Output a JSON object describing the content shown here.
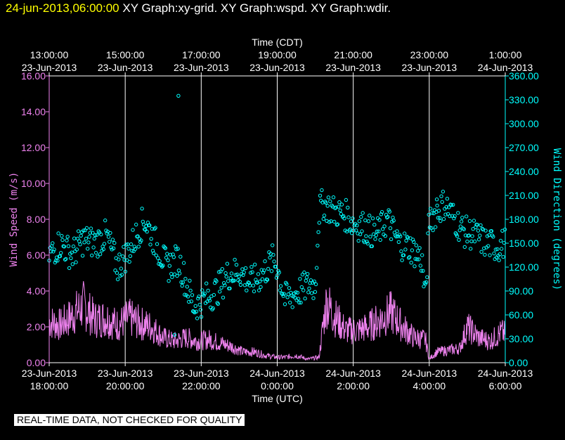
{
  "header": {
    "timestamp": "24-jun-2013,06:00:00",
    "layers": "XY Graph:xy-grid.  XY Graph:wspd.  XY Graph:wdir."
  },
  "footer": {
    "qc_note": "REAL-TIME DATA, NOT CHECKED FOR QUALITY"
  },
  "colors": {
    "wspd": "#ee82ee",
    "wdir": "#00ffff",
    "grid": "#ffffff",
    "background": "#000000"
  },
  "chart_data": {
    "type": "line",
    "top_axis_title": "Time (CDT)",
    "bottom_axis_title": "Time (UTC)",
    "left_axis_title": "Wind Speed (m/s)",
    "right_axis_title": "Wind Direction (degrees)",
    "x_range_utc_hours": [
      18.0,
      30.0
    ],
    "top_ticks": [
      {
        "t": 18,
        "time": "13:00:00",
        "date": "23-Jun-2013"
      },
      {
        "t": 20,
        "time": "15:00:00",
        "date": "23-Jun-2013"
      },
      {
        "t": 22,
        "time": "17:00:00",
        "date": "23-Jun-2013"
      },
      {
        "t": 24,
        "time": "19:00:00",
        "date": "23-Jun-2013"
      },
      {
        "t": 26,
        "time": "21:00:00",
        "date": "23-Jun-2013"
      },
      {
        "t": 28,
        "time": "23:00:00",
        "date": "23-Jun-2013"
      },
      {
        "t": 30,
        "time": "1:00:00",
        "date": "24-Jun-2013"
      }
    ],
    "bottom_ticks": [
      {
        "t": 18,
        "date": "23-Jun-2013",
        "time": "18:00:00"
      },
      {
        "t": 20,
        "date": "23-Jun-2013",
        "time": "20:00:00"
      },
      {
        "t": 22,
        "date": "23-Jun-2013",
        "time": "22:00:00"
      },
      {
        "t": 24,
        "date": "24-Jun-2013",
        "time": "0:00:00"
      },
      {
        "t": 26,
        "date": "24-Jun-2013",
        "time": "2:00:00"
      },
      {
        "t": 28,
        "date": "24-Jun-2013",
        "time": "4:00:00"
      },
      {
        "t": 30,
        "date": "24-Jun-2013",
        "time": "6:00:00"
      }
    ],
    "left_axis": {
      "range": [
        0,
        16
      ],
      "tick_labels": [
        "0.00",
        "2.00",
        "4.00",
        "6.00",
        "8.00",
        "10.00",
        "12.00",
        "14.00",
        "16.00"
      ]
    },
    "right_axis": {
      "range": [
        0,
        360
      ],
      "tick_labels": [
        "0.00",
        "30.00",
        "60.00",
        "90.00",
        "120.00",
        "150.00",
        "180.00",
        "210.00",
        "240.00",
        "270.00",
        "300.00",
        "330.00",
        "360.00"
      ]
    },
    "series": [
      {
        "name": "wspd",
        "axis": "left",
        "style": "line",
        "t": [
          18.0,
          18.3,
          18.6,
          18.9,
          19.2,
          19.5,
          19.8,
          20.1,
          20.4,
          20.7,
          21.0,
          21.3,
          21.6,
          21.9,
          22.2,
          22.5,
          22.8,
          23.1,
          23.4,
          23.7,
          24.0,
          24.2,
          24.5,
          24.8,
          25.1,
          25.2,
          25.3,
          25.5,
          25.8,
          26.1,
          26.4,
          26.7,
          27.0,
          27.3,
          27.6,
          27.9,
          28.0,
          28.2,
          28.5,
          28.8,
          29.0,
          29.3,
          29.6,
          29.9,
          30.0
        ],
        "values": [
          2.3,
          2.1,
          2.6,
          3.2,
          2.4,
          2.5,
          2.1,
          2.5,
          2.2,
          2.0,
          1.4,
          1.2,
          1.4,
          1.2,
          1.3,
          1.1,
          0.9,
          0.6,
          0.6,
          0.4,
          0.3,
          0.3,
          0.4,
          0.2,
          0.3,
          2.0,
          3.4,
          2.6,
          1.8,
          1.8,
          2.0,
          2.4,
          2.8,
          2.0,
          1.4,
          1.3,
          0.2,
          0.6,
          0.7,
          0.8,
          2.0,
          1.4,
          1.2,
          1.7,
          1.6
        ]
      },
      {
        "name": "wdir",
        "axis": "right",
        "style": "markers",
        "t": [
          18.0,
          18.3,
          18.6,
          18.9,
          19.2,
          19.5,
          19.8,
          20.1,
          20.3,
          20.5,
          20.8,
          21.1,
          21.4,
          21.6,
          21.8,
          22.1,
          22.4,
          22.7,
          23.0,
          23.3,
          23.6,
          23.9,
          24.0,
          24.2,
          24.4,
          24.6,
          24.9,
          25.0,
          25.1,
          25.2,
          25.5,
          25.8,
          26.0,
          26.3,
          26.6,
          26.9,
          27.2,
          27.5,
          27.8,
          27.9,
          28.0,
          28.2,
          28.4,
          28.6,
          28.9,
          29.2,
          29.5,
          29.8,
          30.0
        ],
        "values": [
          135,
          150,
          135,
          155,
          150,
          160,
          120,
          140,
          160,
          180,
          150,
          120,
          130,
          100,
          70,
          80,
          90,
          110,
          115,
          100,
          110,
          130,
          120,
          80,
          85,
          90,
          100,
          95,
          190,
          200,
          190,
          185,
          175,
          170,
          160,
          180,
          150,
          145,
          130,
          80,
          180,
          190,
          200,
          185,
          165,
          160,
          150,
          145,
          150
        ],
        "outliers": [
          {
            "t": 21.4,
            "value": 335
          },
          {
            "t": 21.3,
            "value": 35
          },
          {
            "t": 28.2,
            "value": 205
          }
        ]
      }
    ]
  }
}
